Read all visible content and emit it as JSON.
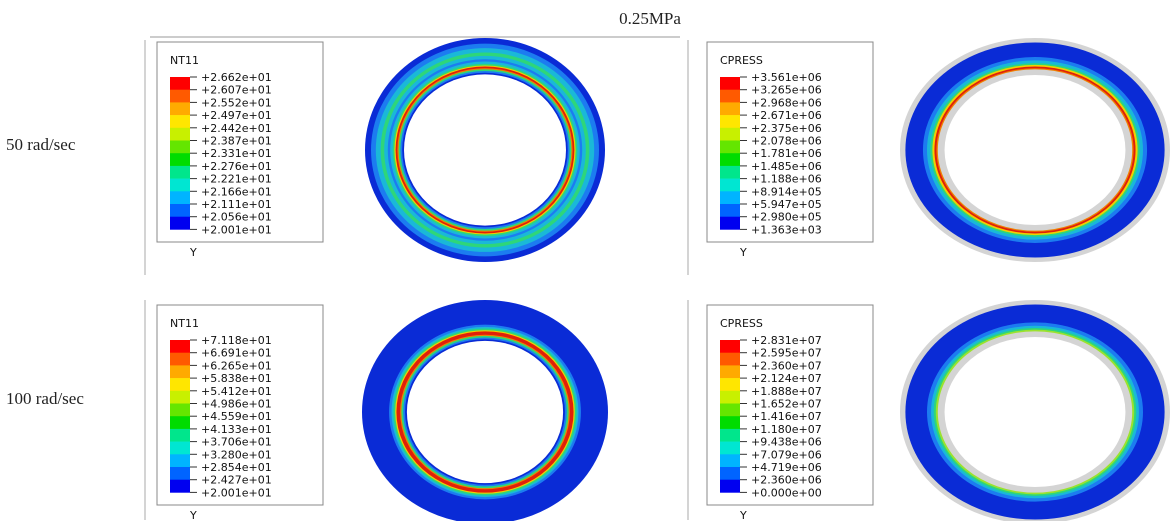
{
  "header": {
    "title": "0.25MPa"
  },
  "rows": [
    {
      "label": "50 rad/sec"
    },
    {
      "label": "100 rad/sec"
    }
  ],
  "panels": [
    {
      "legend_title": "NT11",
      "legend_labels": [
        "+2.662e+01",
        "+2.607e+01",
        "+2.552e+01",
        "+2.497e+01",
        "+2.442e+01",
        "+2.387e+01",
        "+2.331e+01",
        "+2.276e+01",
        "+2.221e+01",
        "+2.166e+01",
        "+2.111e+01",
        "+2.056e+01",
        "+2.001e+01"
      ],
      "axis_label": "Y"
    },
    {
      "legend_title": "CPRESS",
      "legend_labels": [
        "+3.561e+06",
        "+3.265e+06",
        "+2.968e+06",
        "+2.671e+06",
        "+2.375e+06",
        "+2.078e+06",
        "+1.781e+06",
        "+1.485e+06",
        "+1.188e+06",
        "+8.914e+05",
        "+5.947e+05",
        "+2.980e+05",
        "+1.363e+03"
      ],
      "axis_label": "Y"
    },
    {
      "legend_title": "NT11",
      "legend_labels": [
        "+7.118e+01",
        "+6.691e+01",
        "+6.265e+01",
        "+5.838e+01",
        "+5.412e+01",
        "+4.986e+01",
        "+4.559e+01",
        "+4.133e+01",
        "+3.706e+01",
        "+3.280e+01",
        "+2.854e+01",
        "+2.427e+01",
        "+2.001e+01"
      ],
      "axis_label": "Y"
    },
    {
      "legend_title": "CPRESS",
      "legend_labels": [
        "+2.831e+07",
        "+2.595e+07",
        "+2.360e+07",
        "+2.124e+07",
        "+1.888e+07",
        "+1.652e+07",
        "+1.416e+07",
        "+1.180e+07",
        "+9.438e+06",
        "+7.079e+06",
        "+4.719e+06",
        "+2.360e+06",
        "+0.000e+00"
      ],
      "axis_label": "Y"
    }
  ]
}
